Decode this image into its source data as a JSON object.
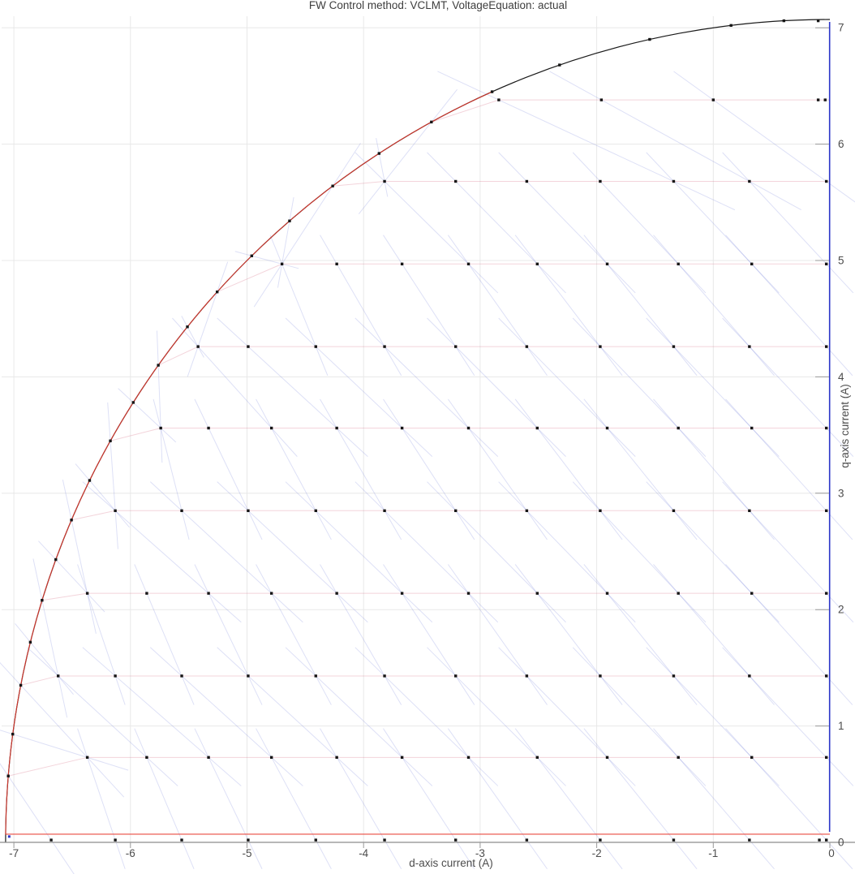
{
  "title": "FW Control method: VCLMT, VoltageEquation: actual",
  "x_axis": {
    "label": "d-axis current (A)",
    "ticks": [
      -7,
      -6,
      -5,
      -4,
      -3,
      -2,
      -1,
      0
    ]
  },
  "y_axis": {
    "label": "q-axis current (A)",
    "ticks": [
      0,
      1,
      2,
      3,
      4,
      5,
      6,
      7
    ]
  },
  "chart_data": {
    "type": "scatter",
    "title": "FW Control method: VCLMT, VoltageEquation: actual",
    "xlabel": "d-axis current (A)",
    "ylabel": "q-axis current (A)",
    "xlim": [
      -7.12,
      0.21
    ],
    "ylim": [
      -0.02,
      7.1
    ],
    "grid": true,
    "current_limit_circle": {
      "radius": 7.071,
      "color": "#1a1a1a"
    },
    "red_boundary": {
      "iq_floor": 0.07,
      "arc_iq_max": 6.45,
      "arc_iq_min": 0.07,
      "color": "#e8392e"
    },
    "blue_q_axis_line": {
      "id": -0.03,
      "iq_from": 0.09,
      "iq_to": 7.05,
      "color": "#2b35c8"
    },
    "blue_point": {
      "id": -7.04,
      "iq": 0.05
    },
    "grid_rows": [
      {
        "iq": 0.02,
        "id": [
          -0.03,
          -0.69,
          -1.34,
          -1.97,
          -2.6,
          -3.21,
          -3.82,
          -4.41,
          -4.99,
          -5.56,
          -6.13,
          -6.68
        ]
      },
      {
        "iq": 0.73,
        "id": [
          -0.03,
          -0.67,
          -1.3,
          -1.91,
          -2.51,
          -3.1,
          -3.67,
          -4.23,
          -4.79,
          -5.33,
          -5.86,
          -6.37
        ]
      },
      {
        "iq": 1.43,
        "id": [
          -0.03,
          -0.69,
          -1.34,
          -1.97,
          -2.6,
          -3.21,
          -3.82,
          -4.41,
          -4.99,
          -5.56,
          -6.13,
          -6.62
        ]
      },
      {
        "iq": 2.14,
        "id": [
          -0.03,
          -0.67,
          -1.3,
          -1.91,
          -2.51,
          -3.1,
          -3.67,
          -4.23,
          -4.79,
          -5.33,
          -5.86,
          -6.37
        ]
      },
      {
        "iq": 2.85,
        "id": [
          -0.03,
          -0.69,
          -1.34,
          -1.97,
          -2.6,
          -3.21,
          -3.82,
          -4.41,
          -4.99,
          -5.56,
          -6.13
        ]
      },
      {
        "iq": 3.56,
        "id": [
          -0.03,
          -0.67,
          -1.3,
          -1.91,
          -2.51,
          -3.1,
          -3.67,
          -4.23,
          -4.79,
          -5.33,
          -5.74
        ]
      },
      {
        "iq": 4.26,
        "id": [
          -0.03,
          -0.69,
          -1.34,
          -1.97,
          -2.6,
          -3.21,
          -3.82,
          -4.41,
          -4.99,
          -5.42
        ]
      },
      {
        "iq": 4.97,
        "id": [
          -0.03,
          -0.67,
          -1.3,
          -1.91,
          -2.51,
          -3.1,
          -3.67,
          -4.23,
          -4.7
        ]
      },
      {
        "iq": 5.68,
        "id": [
          -0.03,
          -0.69,
          -1.34,
          -1.97,
          -2.6,
          -3.21,
          -3.82
        ]
      },
      {
        "iq": 6.38,
        "id": [
          -0.04,
          -1.0,
          -1.96,
          -2.84
        ]
      }
    ],
    "arc_dots_iq": [
      0.57,
      0.93,
      1.35,
      1.72,
      2.08,
      2.43,
      2.77,
      3.11,
      3.45,
      3.78,
      4.1,
      4.43,
      4.73,
      5.04,
      5.34,
      5.64,
      5.92,
      6.19,
      6.45,
      6.68,
      6.9,
      7.02,
      7.06
    ],
    "extra_dots": [
      {
        "id": -0.1,
        "iq": 7.06
      },
      {
        "id": -0.1,
        "iq": 6.38
      },
      {
        "id": -0.09,
        "iq": 0.02
      }
    ],
    "pink_row_sources": {
      "0.73": 0.57,
      "1.43": 1.35,
      "2.14": 2.08,
      "2.85": 2.77,
      "3.56": 3.45,
      "4.26": 4.1,
      "4.97": 4.73,
      "5.68": 5.64,
      "6.38": 6.19
    },
    "colors": {
      "gridline": "#e8e8e8",
      "pink_trace": "rgba(214,114,136,0.30)",
      "blue_trace": "rgba(100,115,215,0.22)",
      "dot": "#161616",
      "spine": "#8c8c8c",
      "tick": "#9a9a9a",
      "text": "#4d4d4d"
    }
  }
}
